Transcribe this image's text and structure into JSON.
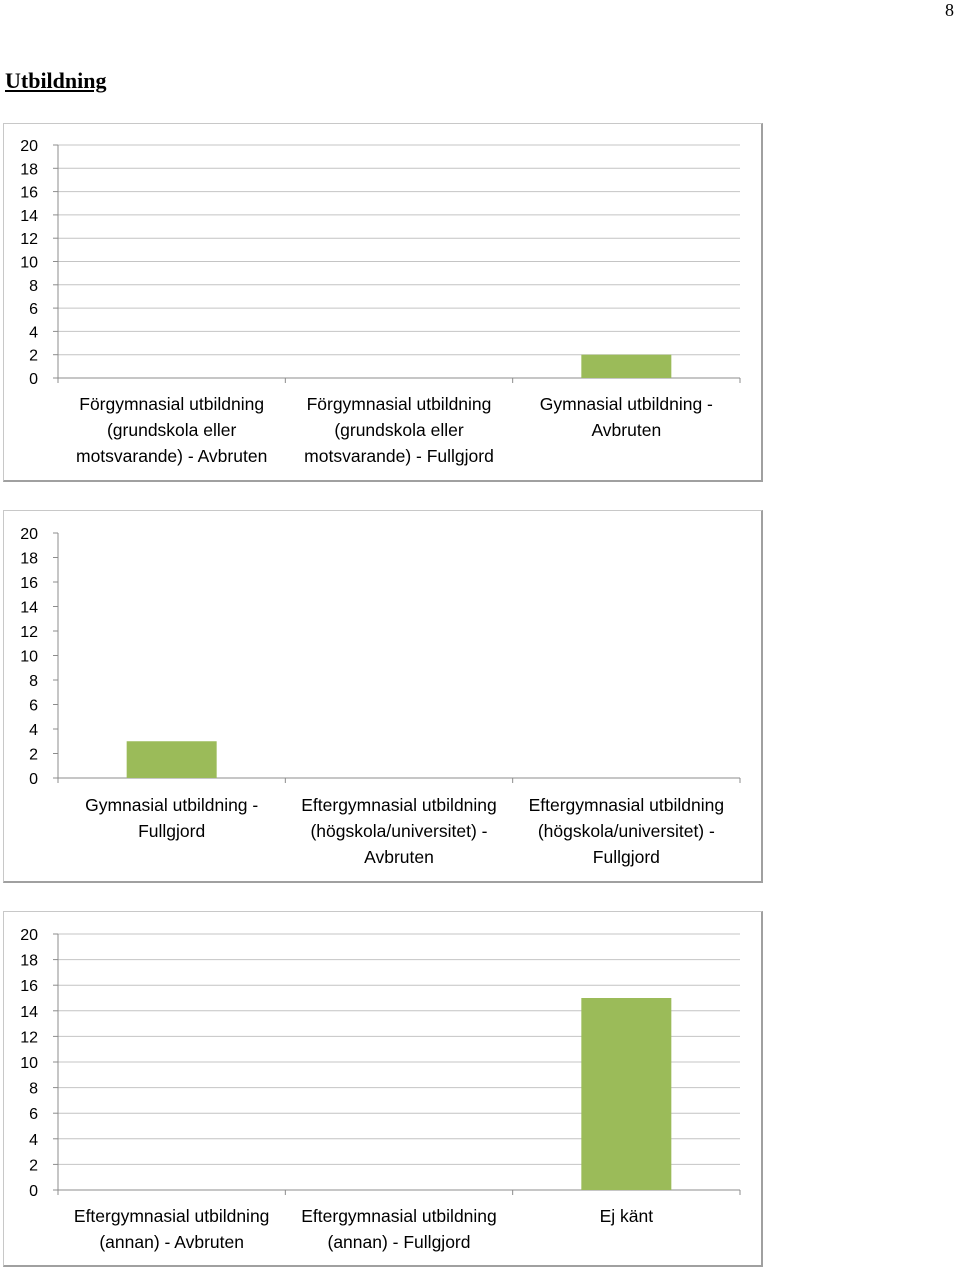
{
  "page": {
    "number": "8",
    "section_title": "Utbildning"
  },
  "chart_data": [
    {
      "type": "bar",
      "ylim": [
        0,
        20
      ],
      "yticks": [
        "20",
        "18",
        "16",
        "14",
        "12",
        "10",
        "8",
        "6",
        "4",
        "2",
        "0"
      ],
      "grid": true,
      "bar_color": "#9BBB59",
      "categories": [
        "Förgymnasial utbildning (grundskola eller motsvarande) - Avbruten",
        "Förgymnasial utbildning (grundskola eller motsvarande) - Fullgjord",
        "Gymnasial utbildning - Avbruten"
      ],
      "category_lines": [
        [
          "Förgymnasial utbildning",
          "(grundskola eller",
          "motsvarande) - Avbruten"
        ],
        [
          "Förgymnasial utbildning",
          "(grundskola eller",
          "motsvarande) - Fullgjord"
        ],
        [
          "Gymnasial utbildning -",
          "Avbruten"
        ]
      ],
      "values": [
        0,
        0,
        2
      ]
    },
    {
      "type": "bar",
      "ylim": [
        0,
        20
      ],
      "yticks": [
        "20",
        "18",
        "16",
        "14",
        "12",
        "10",
        "8",
        "6",
        "4",
        "2",
        "0"
      ],
      "grid": false,
      "bar_color": "#9BBB59",
      "categories": [
        "Gymnasial utbildning - Fullgjord",
        "Eftergymnasial utbildning (högskola/universitet) - Avbruten",
        "Eftergymnasial utbildning (högskola/universitet) - Fullgjord"
      ],
      "category_lines": [
        [
          "Gymnasial utbildning -",
          "Fullgjord"
        ],
        [
          "Eftergymnasial utbildning",
          "(högskola/universitet) -",
          "Avbruten"
        ],
        [
          "Eftergymnasial utbildning",
          "(högskola/universitet) -",
          "Fullgjord"
        ]
      ],
      "values": [
        3,
        0,
        0
      ]
    },
    {
      "type": "bar",
      "ylim": [
        0,
        20
      ],
      "yticks": [
        "20",
        "18",
        "16",
        "14",
        "12",
        "10",
        "8",
        "6",
        "4",
        "2",
        "0"
      ],
      "grid": true,
      "bar_color": "#9BBB59",
      "categories": [
        "Eftergymnasial utbildning (annan) - Avbruten",
        "Eftergymnasial utbildning (annan) - Fullgjord",
        "Ej känt"
      ],
      "category_lines": [
        [
          "Eftergymnasial utbildning",
          "(annan) - Avbruten"
        ],
        [
          "Eftergymnasial utbildning",
          "(annan) - Fullgjord"
        ],
        [
          "Ej känt"
        ]
      ],
      "values": [
        0,
        0,
        15
      ]
    }
  ]
}
